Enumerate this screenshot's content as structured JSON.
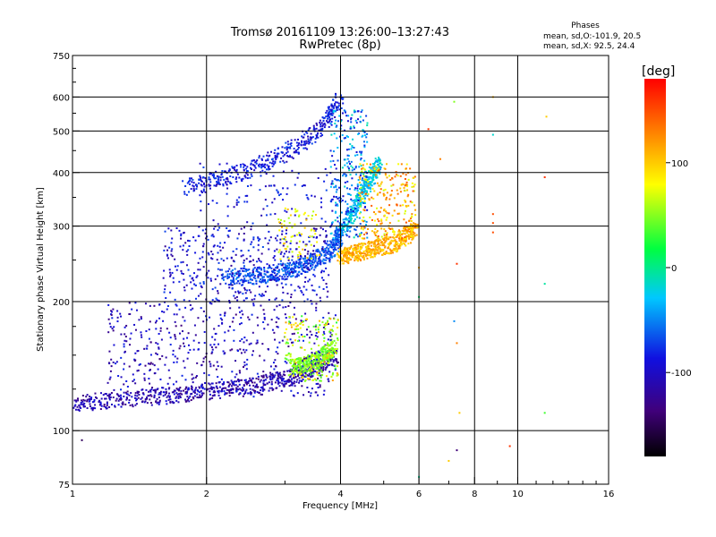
{
  "chart_data": {
    "type": "scatter",
    "title": "Tromsø 20161109 13:26:00–13:27:43",
    "subtitle": "RwPretec (8p)",
    "xlabel": "Frequency [MHz]",
    "ylabel": "Stationary phase Virtual Height [km]",
    "x_scale": "log2",
    "y_scale": "log",
    "xlim": [
      1,
      16
    ],
    "ylim": [
      75,
      750
    ],
    "x_ticks": [
      "1",
      "2",
      "4",
      "6",
      "8",
      "10",
      "16"
    ],
    "y_ticks": [
      "75",
      "100",
      "200",
      "300",
      "400",
      "500",
      "600",
      "750"
    ],
    "x_tick_values": [
      1,
      2,
      4,
      6,
      8,
      10,
      16
    ],
    "y_tick_values": [
      75,
      100,
      200,
      300,
      400,
      500,
      600,
      750
    ],
    "grid_x": [
      2,
      4,
      6,
      8,
      10
    ],
    "grid_y": [
      100,
      200,
      300,
      400,
      500,
      600
    ],
    "grid": true,
    "stats": {
      "header": "Phases",
      "line1": "mean, sd,O:-101.9, 20.5",
      "line2": "mean, sd,X:  92.5, 24.4"
    },
    "colorbar": {
      "label": "[deg]",
      "ticks": [
        "100",
        "0",
        "-100"
      ],
      "tick_values": [
        100,
        0,
        -100
      ],
      "range": [
        -180,
        180
      ]
    },
    "traces": [
      {
        "x": [
          1.0,
          1.2,
          1.5,
          1.8,
          2.2,
          2.6,
          3.0,
          3.3,
          3.6,
          3.9
        ],
        "y": [
          115,
          118,
          120,
          122,
          125,
          128,
          132,
          137,
          143,
          150
        ],
        "phase": -120
      },
      {
        "x": [
          3.1,
          3.3,
          3.5,
          3.7,
          3.9
        ],
        "y": [
          140,
          142,
          145,
          150,
          158
        ],
        "phase": 40
      },
      {
        "x": [
          2.2,
          2.5,
          2.8,
          3.1,
          3.4,
          3.7,
          3.95,
          4.0
        ],
        "y": [
          228,
          229,
          232,
          238,
          246,
          258,
          275,
          300
        ],
        "phase": -80
      },
      {
        "x": [
          4.0,
          4.2,
          4.5,
          4.8,
          5.2,
          5.6,
          5.9
        ],
        "y": [
          255,
          258,
          262,
          266,
          272,
          283,
          300
        ],
        "phase": 110
      },
      {
        "x": [
          4.1,
          4.3,
          4.5,
          4.7,
          4.9
        ],
        "y": [
          300,
          330,
          360,
          390,
          420
        ],
        "phase": -40
      },
      {
        "x": [
          1.8,
          2.2,
          2.7,
          3.2,
          3.7,
          4.0
        ],
        "y": [
          370,
          390,
          420,
          460,
          520,
          600
        ],
        "phase": -100
      }
    ],
    "points": [
      {
        "x": 8.8,
        "y": 320,
        "phase": 150
      },
      {
        "x": 8.8,
        "y": 305,
        "phase": 150
      },
      {
        "x": 8.8,
        "y": 290,
        "phase": 150
      },
      {
        "x": 11.5,
        "y": 390,
        "phase": 160
      },
      {
        "x": 11.6,
        "y": 540,
        "phase": 100
      },
      {
        "x": 11.5,
        "y": 220,
        "phase": -20
      },
      {
        "x": 11.5,
        "y": 110,
        "phase": 20
      },
      {
        "x": 9.6,
        "y": 92,
        "phase": 160
      },
      {
        "x": 7.4,
        "y": 110,
        "phase": 100
      },
      {
        "x": 7.3,
        "y": 90,
        "phase": -140
      },
      {
        "x": 7.2,
        "y": 180,
        "phase": -60
      },
      {
        "x": 7.3,
        "y": 160,
        "phase": 130
      },
      {
        "x": 7.3,
        "y": 245,
        "phase": 160
      },
      {
        "x": 6.0,
        "y": 240,
        "phase": 110
      },
      {
        "x": 6.0,
        "y": 205,
        "phase": -10
      },
      {
        "x": 8.8,
        "y": 490,
        "phase": -30
      },
      {
        "x": 8.8,
        "y": 600,
        "phase": 110
      },
      {
        "x": 7.2,
        "y": 585,
        "phase": 40
      },
      {
        "x": 6.7,
        "y": 430,
        "phase": 130
      },
      {
        "x": 6.3,
        "y": 505,
        "phase": 160
      },
      {
        "x": 6.0,
        "y": 78,
        "phase": -20
      },
      {
        "x": 7.0,
        "y": 85,
        "phase": 100
      },
      {
        "x": 1.0,
        "y": 90,
        "phase": -120
      },
      {
        "x": 1.05,
        "y": 95,
        "phase": -150
      }
    ]
  }
}
